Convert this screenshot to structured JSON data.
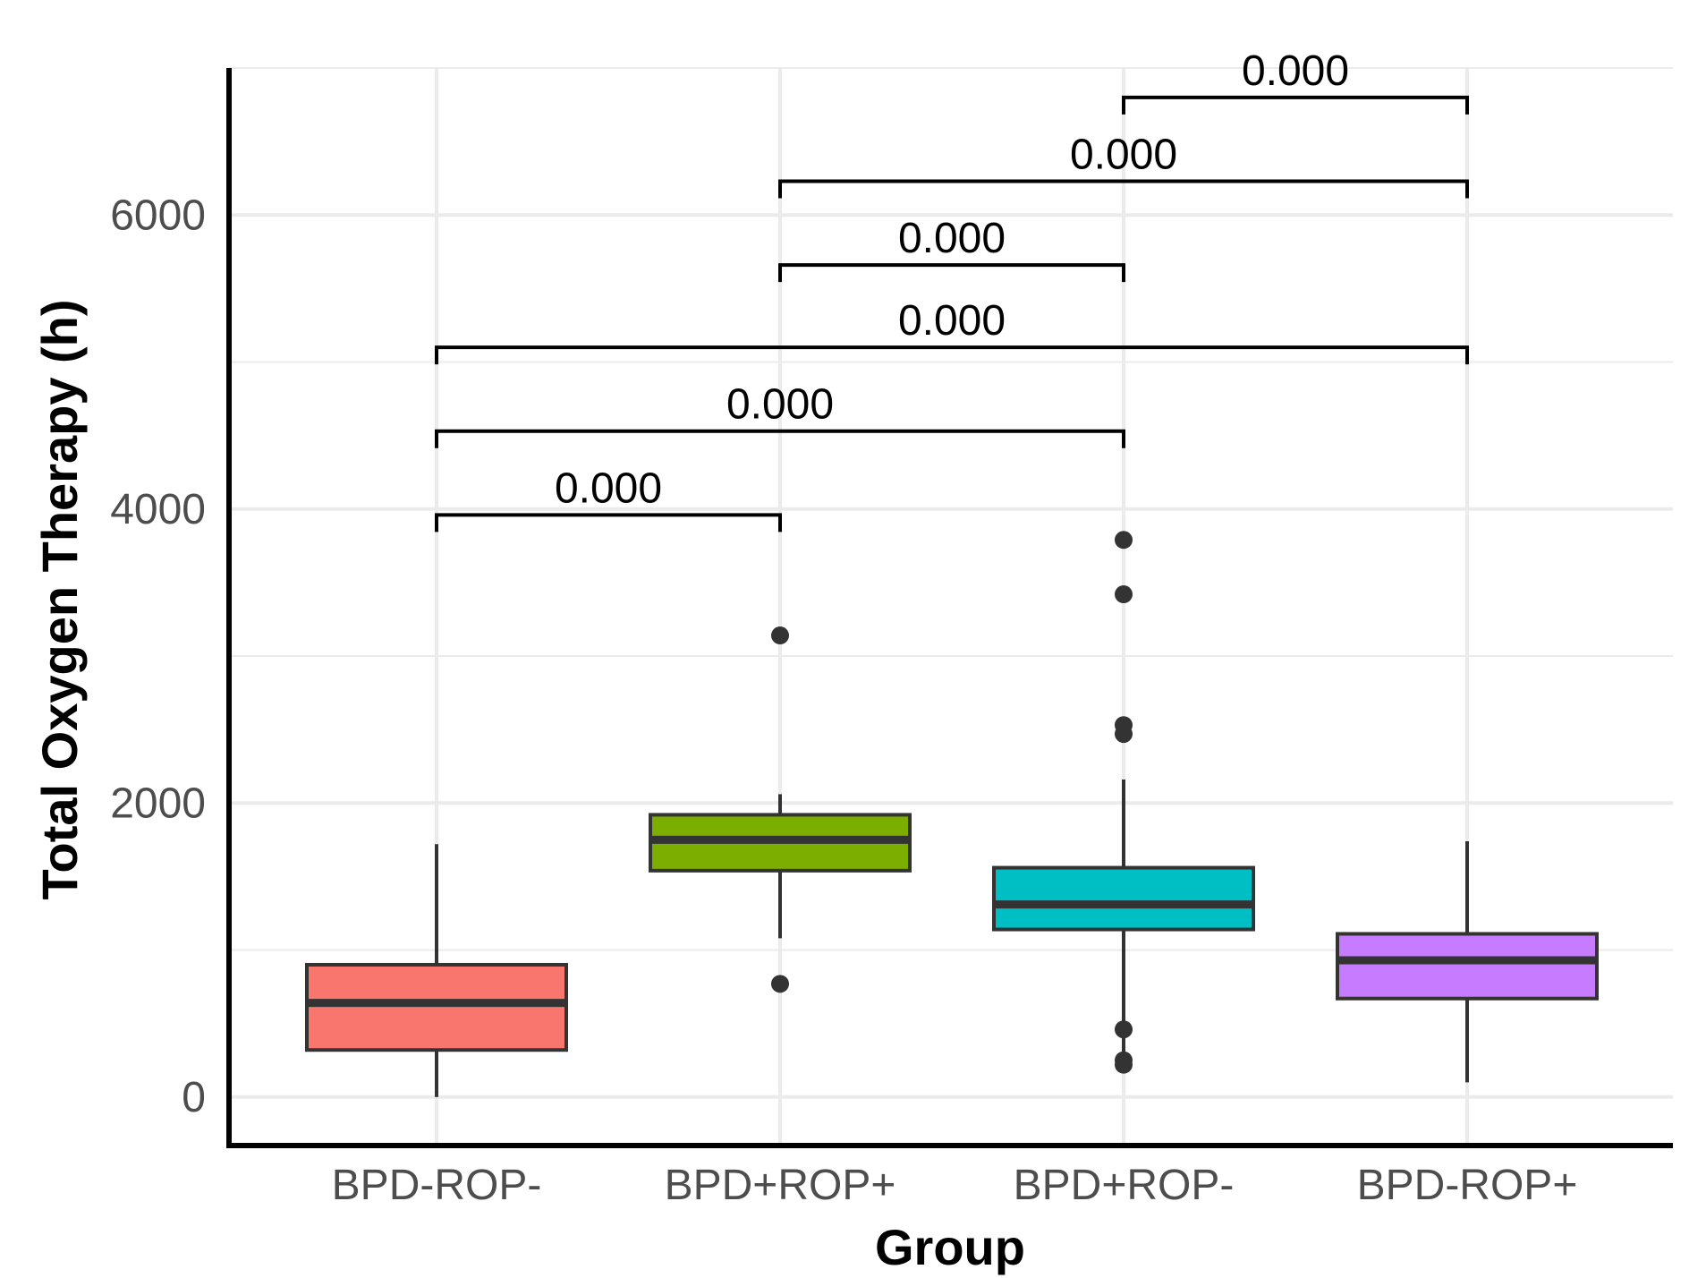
{
  "chart_data": {
    "type": "boxplot",
    "title": "",
    "xlabel": "Group",
    "ylabel": "Total Oxygen Therapy (h)",
    "ylim": [
      -330,
      7000
    ],
    "y_ticks": [
      0,
      2000,
      4000,
      6000
    ],
    "y_minor_gridlines": [
      1000,
      3000,
      5000,
      7000
    ],
    "grid": true,
    "categories": [
      "BPD-ROP-",
      "BPD+ROP+",
      "BPD+ROP-",
      "BPD-ROP+"
    ],
    "boxes": [
      {
        "group": "BPD-ROP-",
        "color": "#F8766D",
        "whisker_low": 0,
        "q1": 320,
        "median": 640,
        "q3": 900,
        "whisker_high": 1720,
        "outliers": []
      },
      {
        "group": "BPD+ROP+",
        "color": "#7CAE00",
        "whisker_low": 1080,
        "q1": 1540,
        "median": 1750,
        "q3": 1920,
        "whisker_high": 2060,
        "outliers": [
          3140,
          770
        ]
      },
      {
        "group": "BPD+ROP-",
        "color": "#00BFC4",
        "whisker_low": 230,
        "q1": 1140,
        "median": 1310,
        "q3": 1560,
        "whisker_high": 2160,
        "outliers": [
          3790,
          3420,
          2530,
          2470,
          460,
          250,
          220
        ]
      },
      {
        "group": "BPD-ROP+",
        "color": "#C77CFF",
        "whisker_low": 100,
        "q1": 670,
        "median": 930,
        "q3": 1110,
        "whisker_high": 1740,
        "outliers": []
      }
    ],
    "comparisons": [
      {
        "from": "BPD-ROP-",
        "to": "BPD+ROP+",
        "label": "0.000",
        "y": 3960
      },
      {
        "from": "BPD-ROP-",
        "to": "BPD+ROP-",
        "label": "0.000",
        "y": 4530
      },
      {
        "from": "BPD-ROP-",
        "to": "BPD-ROP+",
        "label": "0.000",
        "y": 5100
      },
      {
        "from": "BPD+ROP+",
        "to": "BPD+ROP-",
        "label": "0.000",
        "y": 5660
      },
      {
        "from": "BPD+ROP+",
        "to": "BPD-ROP+",
        "label": "0.000",
        "y": 6230
      },
      {
        "from": "BPD+ROP-",
        "to": "BPD-ROP+",
        "label": "0.000",
        "y": 6800
      }
    ]
  }
}
